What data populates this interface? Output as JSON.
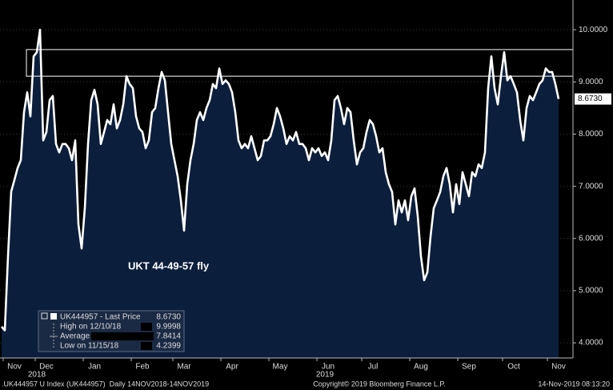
{
  "chart_data": {
    "type": "area",
    "annotation": "UKT 44-49-57 fly",
    "color": "#ffffff",
    "fill_color": "#0b1e3c",
    "grid": true,
    "ylim": [
      3.71,
      10.57
    ],
    "yticks": [
      {
        "value": 4,
        "label": "4.0000"
      },
      {
        "value": 5,
        "label": "5.0000"
      },
      {
        "value": 6,
        "label": "6.0000"
      },
      {
        "value": 7,
        "label": "7.0000"
      },
      {
        "value": 8,
        "label": "8.0000"
      },
      {
        "value": 9,
        "label": "9.0000"
      },
      {
        "value": 10,
        "label": "10.0000"
      }
    ],
    "highlight_range": [
      9.11,
      9.62
    ],
    "categories": [
      null,
      null,
      null,
      null,
      "Nov",
      null,
      null,
      null,
      null,
      null,
      null,
      null,
      null,
      null,
      "Dec",
      null,
      null,
      null,
      null,
      null,
      null,
      null,
      null,
      null,
      null,
      null,
      null,
      null,
      null,
      "Jan",
      null,
      null,
      null,
      null,
      null,
      null,
      null,
      null,
      null,
      null,
      null,
      null,
      null,
      null,
      "Feb",
      null,
      null,
      null,
      null,
      null,
      null,
      null,
      null,
      null,
      null,
      null,
      null,
      "Mar",
      null,
      null,
      null,
      null,
      null,
      null,
      null,
      null,
      null,
      null,
      null,
      null,
      null,
      null,
      "Apr",
      null,
      null,
      null,
      null,
      null,
      null,
      null,
      null,
      null,
      null,
      null,
      null,
      null,
      null,
      "May",
      null,
      null,
      null,
      null,
      null,
      null,
      null,
      null,
      null,
      null,
      null,
      null,
      null,
      null,
      "Jun",
      null,
      null,
      null,
      null,
      null,
      null,
      null,
      null,
      null,
      null,
      null,
      null,
      null,
      "Jul",
      null,
      null,
      null,
      null,
      null,
      null,
      null,
      null,
      null,
      null,
      null,
      null,
      null,
      null,
      "Aug",
      null,
      null,
      null,
      null,
      null,
      null,
      null,
      null,
      null,
      null,
      null,
      null,
      null,
      null,
      "Sep",
      null,
      null,
      null,
      null,
      null,
      null,
      null,
      null,
      null,
      null,
      null,
      null,
      null,
      "Oct",
      null,
      null,
      null,
      null,
      null,
      null,
      null,
      null,
      null,
      null,
      null,
      null,
      null,
      "Nov"
    ],
    "year_labels": [
      null,
      null,
      null,
      null,
      null,
      null,
      null,
      null,
      null,
      null,
      null,
      "2018",
      null,
      null,
      null,
      null,
      null,
      null,
      null,
      null,
      null,
      null,
      null,
      null,
      null,
      null,
      null,
      null,
      null,
      null,
      null,
      null,
      null,
      null,
      null,
      null,
      null,
      null,
      null,
      null,
      null,
      null,
      null,
      null,
      null,
      null,
      null,
      null,
      null,
      null,
      null,
      null,
      null,
      null,
      null,
      null,
      null,
      null,
      null,
      null,
      null,
      null,
      null,
      null,
      null,
      null,
      null,
      null,
      null,
      null,
      null,
      null,
      null,
      null,
      null,
      null,
      null,
      null,
      null,
      null,
      null,
      null,
      null,
      null,
      null,
      null,
      null,
      null,
      null,
      null,
      null,
      null,
      null,
      null,
      null,
      null,
      null,
      null,
      null,
      null,
      null,
      "2019",
      null,
      null,
      null,
      null,
      null,
      null,
      null,
      null,
      null,
      null,
      null,
      null,
      null,
      null,
      null,
      null,
      null,
      null,
      null,
      null,
      null,
      null,
      null,
      null,
      null,
      null,
      null,
      null,
      null,
      null,
      null,
      null,
      null,
      null,
      null,
      null,
      null,
      null,
      null,
      null,
      null,
      null,
      null,
      null,
      null,
      null,
      null,
      null,
      null,
      null,
      null,
      null,
      null,
      null,
      null,
      null,
      null,
      null,
      null,
      null,
      null,
      null,
      null,
      null,
      null,
      null,
      null,
      null,
      null,
      null,
      null,
      null,
      null
    ],
    "values": [
      4.31,
      4.2399,
      5.66,
      6.9,
      7.12,
      7.35,
      7.5,
      8.42,
      8.8,
      8.34,
      9.49,
      9.57,
      9.9998,
      7.88,
      8.04,
      8.65,
      8.73,
      7.81,
      7.65,
      7.81,
      7.81,
      7.73,
      7.5,
      7.88,
      6.27,
      5.81,
      6.58,
      7.81,
      8.65,
      8.85,
      8.57,
      7.81,
      8.04,
      8.27,
      8.19,
      8.57,
      8.11,
      8.27,
      8.57,
      9.11,
      8.96,
      8.88,
      8.34,
      8.11,
      8.04,
      7.73,
      7.88,
      8.42,
      8.5,
      8.88,
      9.19,
      9.03,
      8.42,
      7.81,
      7.5,
      7.19,
      6.73,
      6.15,
      7.04,
      7.5,
      7.81,
      8.27,
      8.42,
      8.27,
      8.5,
      8.65,
      8.96,
      8.88,
      9.26,
      8.96,
      9.03,
      8.96,
      8.8,
      8.42,
      7.88,
      7.73,
      7.81,
      7.73,
      7.96,
      7.73,
      7.5,
      7.58,
      7.88,
      7.88,
      7.96,
      8.19,
      8.5,
      8.34,
      8.11,
      7.81,
      7.96,
      7.88,
      8.04,
      7.81,
      7.81,
      7.73,
      7.5,
      7.73,
      7.65,
      7.73,
      7.58,
      7.65,
      7.5,
      7.88,
      8.65,
      8.73,
      8.5,
      8.19,
      8.5,
      8.42,
      7.88,
      7.42,
      7.65,
      7.73,
      8.04,
      8.27,
      8.19,
      7.96,
      7.65,
      7.73,
      7.27,
      7.04,
      6.89,
      6.27,
      6.73,
      6.5,
      6.73,
      6.35,
      6.81,
      6.96,
      6.43,
      5.66,
      5.2,
      5.35,
      6.04,
      6.58,
      6.73,
      6.89,
      7.19,
      7.35,
      7.04,
      6.5,
      7.04,
      6.66,
      7.27,
      7.04,
      6.81,
      7.27,
      7.19,
      7.42,
      7.35,
      7.65,
      8.88,
      9.49,
      8.88,
      8.57,
      9.11,
      9.57,
      9.03,
      9.11,
      8.96,
      8.8,
      8.27,
      7.88,
      8.5,
      8.73,
      8.65,
      8.8,
      8.96,
      9.03,
      9.26,
      9.19,
      9.19,
      8.96,
      8.673
    ],
    "legend": [
      {
        "label": "UK444957 - Last Price",
        "value": "8.6730"
      },
      {
        "label": "High on 12/10/18",
        "value": "9.9998"
      },
      {
        "label": "Average",
        "value": "7.8414"
      },
      {
        "label": "Low on 11/15/18",
        "value": "4.2399"
      }
    ],
    "footer": {
      "left": ".UK444957 U Index (UK444957)  Daily 14NOV2018-14NOV2019",
      "center": "Copyright© 2019 Bloomberg Finance L.P.",
      "right": "14-Nov-2019 08:13:20"
    }
  }
}
